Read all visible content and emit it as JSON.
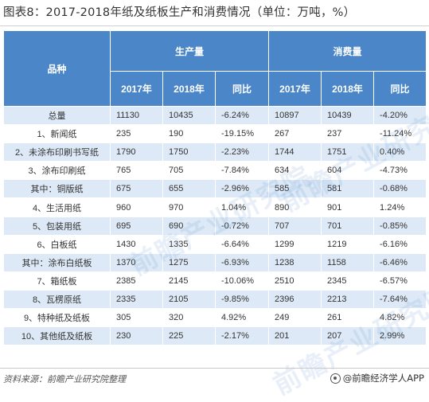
{
  "title": "图表8：2017-2018年纸及纸板生产和消费情况（单位：万吨，%）",
  "table": {
    "header": {
      "category": "品种",
      "group_production": "生产量",
      "group_consumption": "消费量",
      "sub": [
        "2017年",
        "2018年",
        "同比",
        "2017年",
        "2018年",
        "同比"
      ]
    },
    "rows": [
      [
        "总量",
        "11130",
        "10435",
        "-6.24%",
        "10897",
        "10439",
        "-4.20%"
      ],
      [
        "1、新闻纸",
        "235",
        "190",
        "-19.15%",
        "267",
        "237",
        "-11.24%"
      ],
      [
        "2、未涂布印刷书写纸",
        "1790",
        "1750",
        "-2.23%",
        "1744",
        "1751",
        "0.40%"
      ],
      [
        "3、涂布印刷纸",
        "765",
        "705",
        "-7.84%",
        "634",
        "604",
        "-4.73%"
      ],
      [
        "其中：铜版纸",
        "675",
        "655",
        "-2.96%",
        "585",
        "581",
        "-0.68%"
      ],
      [
        "4、生活用纸",
        "960",
        "970",
        "1.04%",
        "890",
        "901",
        "1.24%"
      ],
      [
        "5、包装用纸",
        "695",
        "690",
        "-0.72%",
        "707",
        "701",
        "-0.85%"
      ],
      [
        "6、白板纸",
        "1430",
        "1335",
        "-6.64%",
        "1299",
        "1219",
        "-6.16%"
      ],
      [
        "其中：涂布白纸板",
        "1370",
        "1275",
        "-6.93%",
        "1238",
        "1158",
        "-6.46%"
      ],
      [
        "7、箱纸板",
        "2385",
        "2145",
        "-10.06%",
        "2510",
        "2345",
        "-6.57%"
      ],
      [
        "8、瓦楞原纸",
        "2335",
        "2105",
        "-9.85%",
        "2396",
        "2213",
        "-7.64%"
      ],
      [
        "9、特种纸及纸板",
        "305",
        "320",
        "4.92%",
        "249",
        "261",
        "4.82%"
      ],
      [
        "10、其他纸及纸板",
        "230",
        "225",
        "-2.17%",
        "201",
        "207",
        "2.99%"
      ]
    ]
  },
  "watermark_text": "前瞻产业研究院",
  "footer": {
    "source": "资料来源：前瞻产业研究院整理",
    "brand": "@前瞻经济学人APP",
    "brand_icon": "qianzhan-logo-icon"
  },
  "colors": {
    "header_bg": "#4a86c8",
    "row_alt_bg": "#dde9f6",
    "row_bg": "#ffffff"
  }
}
